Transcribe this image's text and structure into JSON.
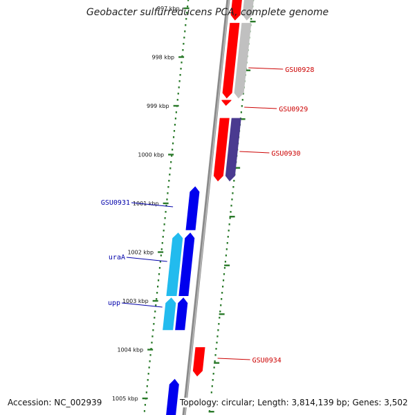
{
  "title": "Geobacter sulfurreducens PCA, complete genome",
  "footer": {
    "accession": "Accession: NC_002939",
    "topology": "Topology: circular; Length: 3,814,139 bp; Genes: 3,502"
  },
  "colors": {
    "forward_gene": "#ff0000",
    "reverse_gene": "#0000ee",
    "cyan_gene": "#22bbee",
    "grey_gene": "#c0c0c0",
    "purple_gene": "#4a3a90",
    "backbone": "#8a8a8a",
    "tick": "#2a7a2a",
    "red_label": "#cc0000",
    "blue_label": "#0000aa"
  },
  "scale": {
    "unit": "kbp",
    "ticks": [
      {
        "value": 997,
        "label": "997 kbp"
      },
      {
        "value": 998,
        "label": "998 kbp"
      },
      {
        "value": 999,
        "label": "999 kbp"
      },
      {
        "value": 1000,
        "label": "1000 kbp"
      },
      {
        "value": 1001,
        "label": "1001 kbp"
      },
      {
        "value": 1002,
        "label": "1002 kbp"
      },
      {
        "value": 1003,
        "label": "1003 kbp"
      },
      {
        "value": 1004,
        "label": "1004 kbp"
      },
      {
        "value": 1005,
        "label": "1005 kbp"
      }
    ]
  },
  "genes": [
    {
      "id": "red-a",
      "label": "",
      "start": 996.75,
      "end": 997.25,
      "lane": "outer-fwd",
      "strand": "+",
      "color": "#ff0000"
    },
    {
      "id": "grey-a",
      "label": "",
      "start": 996.75,
      "end": 997.25,
      "lane": "outer-fwd2",
      "strand": "+",
      "color": "#c0c0c0"
    },
    {
      "id": "gsu0928",
      "label": "GSU0928",
      "start": 997.3,
      "end": 998.85,
      "lane": "outer-fwd2",
      "strand": "+",
      "color": "#c0c0c0"
    },
    {
      "id": "red-b",
      "label": "",
      "start": 997.3,
      "end": 998.85,
      "lane": "outer-fwd",
      "strand": "+",
      "color": "#ff0000"
    },
    {
      "id": "gsu0929",
      "label": "GSU0929",
      "start": 998.88,
      "end": 999.0,
      "lane": "outer-fwd",
      "strand": "+",
      "color": "#ff0000"
    },
    {
      "id": "gsu0930",
      "label": "GSU0930",
      "start": 999.25,
      "end": 1000.55,
      "lane": "outer-fwd2",
      "strand": "+",
      "color": "#4a3a90"
    },
    {
      "id": "red-c",
      "label": "",
      "start": 999.25,
      "end": 1000.55,
      "lane": "outer-fwd",
      "strand": "+",
      "color": "#ff0000"
    },
    {
      "id": "gsu0931",
      "label": "GSU0931",
      "start": 1000.65,
      "end": 1001.55,
      "lane": "inner-rev",
      "strand": "-",
      "color": "#0000ee"
    },
    {
      "id": "uraA",
      "label": "uraA",
      "start": 1001.6,
      "end": 1002.9,
      "lane": "inner-rev2",
      "strand": "-",
      "color": "#22bbee"
    },
    {
      "id": "rev-b",
      "label": "",
      "start": 1001.6,
      "end": 1002.9,
      "lane": "inner-rev",
      "strand": "-",
      "color": "#0000ee"
    },
    {
      "id": "upp",
      "label": "upp",
      "start": 1002.93,
      "end": 1003.6,
      "lane": "inner-rev2",
      "strand": "-",
      "color": "#22bbee"
    },
    {
      "id": "rev-c",
      "label": "",
      "start": 1002.93,
      "end": 1003.6,
      "lane": "inner-rev",
      "strand": "-",
      "color": "#0000ee"
    },
    {
      "id": "gsu0934",
      "label": "GSU0934",
      "start": 1003.95,
      "end": 1004.55,
      "lane": "outer-fwd",
      "strand": "+",
      "color": "#ff0000"
    },
    {
      "id": "rev-d",
      "label": "",
      "start": 1004.6,
      "end": 1005.5,
      "lane": "inner-rev",
      "strand": "-",
      "color": "#0000ee"
    }
  ]
}
